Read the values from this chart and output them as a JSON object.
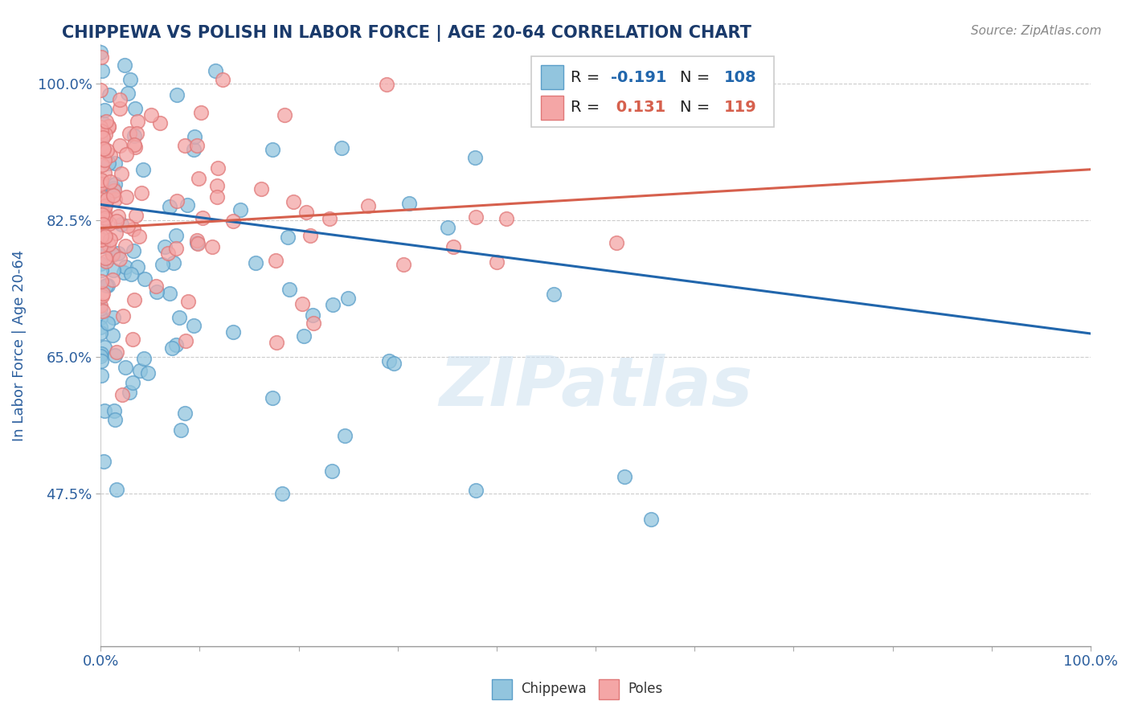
{
  "title": "CHIPPEWA VS POLISH IN LABOR FORCE | AGE 20-64 CORRELATION CHART",
  "source_text": "Source: ZipAtlas.com",
  "ylabel": "In Labor Force | Age 20-64",
  "xlim": [
    0.0,
    1.0
  ],
  "ylim": [
    0.28,
    1.05
  ],
  "yticks": [
    0.475,
    0.65,
    0.825,
    1.0
  ],
  "yticklabels": [
    "47.5%",
    "65.0%",
    "82.5%",
    "100.0%"
  ],
  "chippewa_color": "#92c5de",
  "poles_color": "#f4a6a6",
  "chippewa_edge": "#5a9ec9",
  "poles_edge": "#e07878",
  "chippewa_line_color": "#2166ac",
  "poles_line_color": "#d6604d",
  "chippewa_R": -0.191,
  "chippewa_N": 108,
  "poles_R": 0.131,
  "poles_N": 119,
  "title_color": "#1a3a6b",
  "axis_label_color": "#2c5f9e",
  "tick_color": "#2c5f9e",
  "watermark": "ZIPatlas",
  "background_color": "#ffffff",
  "grid_color": "#cccccc",
  "chippewa_intercept": 0.845,
  "chippewa_slope": -0.165,
  "poles_intercept": 0.815,
  "poles_slope": 0.075
}
